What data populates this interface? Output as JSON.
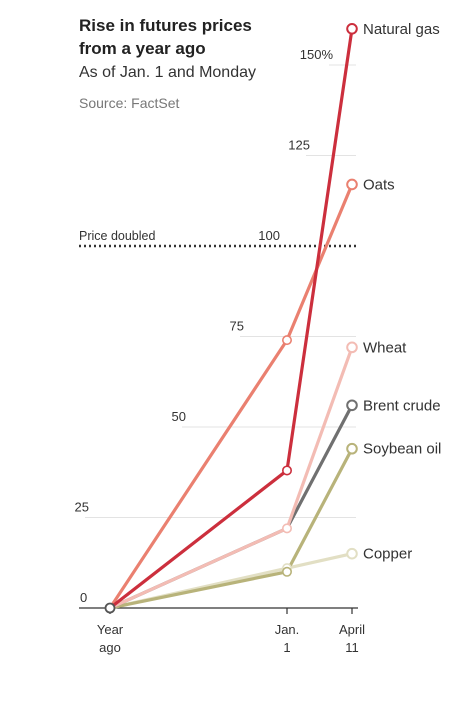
{
  "chart_data": {
    "type": "line",
    "title": "Rise in futures prices from a year ago",
    "subtitle": "As of Jan. 1 and Monday",
    "source": "Source: FactSet",
    "x": [
      "Year ago",
      "Jan. 1",
      "April 11"
    ],
    "x_tick_labels": [
      [
        "Year",
        "ago"
      ],
      [
        "Jan.",
        "1"
      ],
      [
        "April",
        "11"
      ]
    ],
    "ylim": [
      0,
      160
    ],
    "y_ticks": [
      0,
      25,
      50,
      75,
      100,
      125,
      150
    ],
    "y_tick_labels": [
      "0",
      "25",
      "50",
      "75",
      "100",
      "125",
      "150%"
    ],
    "grid": true,
    "annotation": {
      "label": "Price doubled",
      "y": 100
    },
    "series": [
      {
        "name": "Copper",
        "values": [
          0,
          11,
          15
        ],
        "color": "#e2dfc4"
      },
      {
        "name": "Soybean oil",
        "values": [
          0,
          10,
          44
        ],
        "color": "#b8b37a"
      },
      {
        "name": "Brent crude",
        "values": [
          0,
          22,
          56
        ],
        "color": "#707070"
      },
      {
        "name": "Wheat",
        "values": [
          0,
          22,
          72
        ],
        "color": "#f3bcb4"
      },
      {
        "name": "Oats",
        "values": [
          0,
          74,
          117
        ],
        "color": "#ea8070"
      },
      {
        "name": "Natural gas",
        "values": [
          0,
          38,
          160
        ],
        "color": "#cc2f3d"
      }
    ]
  }
}
